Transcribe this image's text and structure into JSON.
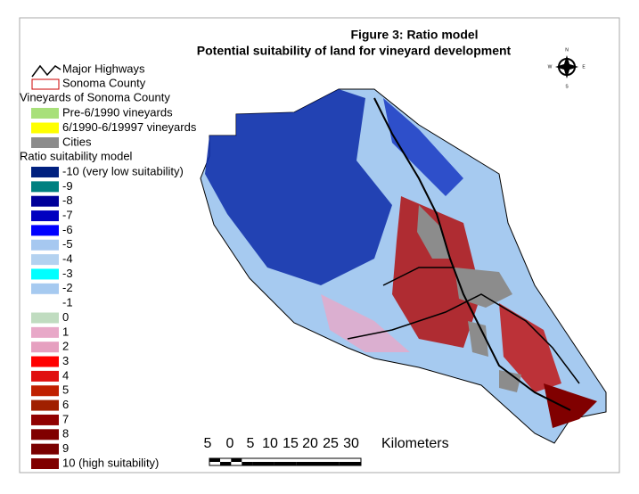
{
  "title": {
    "line1": "Figure 3:  Ratio model",
    "line2": "Potential suitability of land for vineyard development"
  },
  "legend": {
    "highways": "Major Highways",
    "county": "Sonoma County",
    "vineyards_heading": "Vineyards of Sonoma County",
    "vineyards": [
      {
        "label": "Pre-6/1990 vineyards",
        "color": "#a8e07a"
      },
      {
        "label": "6/1990-6/19997 vineyards",
        "color": "#ffff00"
      }
    ],
    "cities": {
      "label": "Cities",
      "color": "#8c8c8c"
    },
    "model_heading": "Ratio suitability model",
    "classes": [
      {
        "label": "-10 (very low suitability)",
        "color": "#00207f"
      },
      {
        "label": "-9",
        "color": "#008080"
      },
      {
        "label": "-8",
        "color": "#000099"
      },
      {
        "label": "-7",
        "color": "#0000c0"
      },
      {
        "label": "-6",
        "color": "#0000ff"
      },
      {
        "label": "-5",
        "color": "#a6c8f0"
      },
      {
        "label": "-4",
        "color": "#b4d2f0"
      },
      {
        "label": "-3",
        "color": "#00ffff"
      },
      {
        "label": "-2",
        "color": "#a6caf0"
      },
      {
        "label": "-1",
        "color": "#ffffff"
      },
      {
        "label": "0",
        "color": "#c0dcc0"
      },
      {
        "label": "1",
        "color": "#e8a8c8"
      },
      {
        "label": "2",
        "color": "#e6a0c0"
      },
      {
        "label": "3",
        "color": "#ff0000"
      },
      {
        "label": "4",
        "color": "#e01010"
      },
      {
        "label": "5",
        "color": "#c02000"
      },
      {
        "label": "6",
        "color": "#a02000"
      },
      {
        "label": "7",
        "color": "#900000"
      },
      {
        "label": "8",
        "color": "#800000"
      },
      {
        "label": "9",
        "color": "#7a0000"
      },
      {
        "label": "10 (high suitability)",
        "color": "#800000"
      }
    ]
  },
  "scale_bar": {
    "labels": [
      "5",
      "0",
      "5",
      "10",
      "15",
      "20",
      "25",
      "30"
    ],
    "unit": "Kilometers"
  },
  "compass": {
    "n": "N",
    "e": "E",
    "s": "S",
    "w": "W"
  }
}
